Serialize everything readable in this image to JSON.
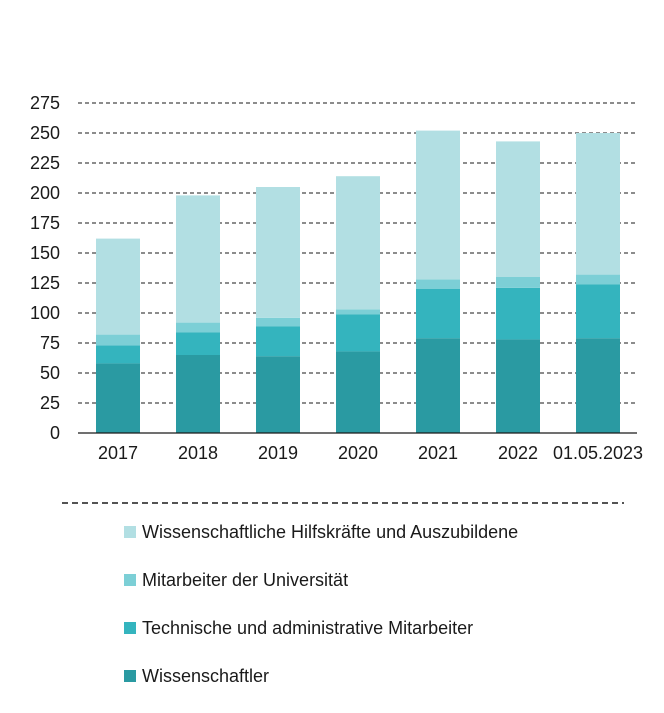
{
  "chart_data": {
    "type": "bar",
    "stacked": true,
    "title": "",
    "xlabel": "",
    "ylabel": "",
    "categories": [
      "2017",
      "2018",
      "2019",
      "2020",
      "2021",
      "2022",
      "01.05.2023"
    ],
    "ylim": [
      0,
      275
    ],
    "yticks": [
      0,
      25,
      50,
      75,
      100,
      125,
      150,
      175,
      200,
      225,
      250,
      275
    ],
    "grid": "dashed horizontal",
    "legend_position": "bottom",
    "series": [
      {
        "name": "Wissenschaftler",
        "color": "#2a9aa2",
        "values": [
          58,
          65,
          64,
          68,
          79,
          78,
          79
        ]
      },
      {
        "name": "Technische und administrative Mitarbeiter",
        "color": "#34b4be",
        "values": [
          15,
          19,
          25,
          31,
          41,
          43,
          45
        ]
      },
      {
        "name": "Mitarbeiter der Universität",
        "color": "#7ccfd6",
        "values": [
          9,
          8,
          7,
          4,
          8,
          9,
          8
        ]
      },
      {
        "name": "Wissenschaftliche Hilfskräfte und Auszubildene",
        "color": "#b2dfe3",
        "values": [
          80,
          106,
          109,
          111,
          124,
          113,
          118
        ]
      }
    ]
  }
}
